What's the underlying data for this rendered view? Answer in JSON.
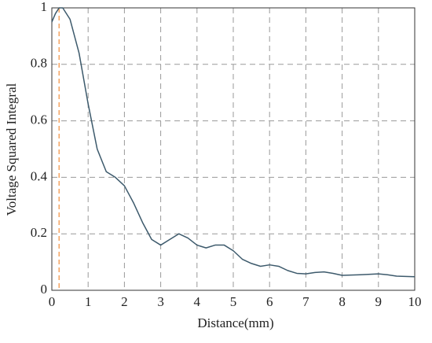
{
  "chart_data": {
    "type": "line",
    "xlabel": "Distance(mm)",
    "ylabel": "Voltage Squared Integral",
    "x": [
      0,
      0.1,
      0.2,
      0.3,
      0.5,
      0.75,
      1.0,
      1.25,
      1.5,
      1.75,
      2.0,
      2.25,
      2.5,
      2.75,
      3.0,
      3.25,
      3.5,
      3.75,
      4.0,
      4.25,
      4.5,
      4.75,
      5.0,
      5.25,
      5.5,
      5.75,
      6.0,
      6.25,
      6.5,
      6.75,
      7.0,
      7.25,
      7.5,
      7.75,
      8.0,
      8.5,
      9.0,
      9.25,
      9.5,
      10
    ],
    "series": [
      {
        "color": "#3d5a6c",
        "values": [
          0.95,
          0.98,
          1.0,
          1.0,
          0.96,
          0.84,
          0.66,
          0.5,
          0.42,
          0.4,
          0.37,
          0.31,
          0.24,
          0.18,
          0.16,
          0.18,
          0.2,
          0.185,
          0.16,
          0.15,
          0.16,
          0.16,
          0.14,
          0.11,
          0.095,
          0.085,
          0.09,
          0.085,
          0.07,
          0.06,
          0.058,
          0.063,
          0.065,
          0.06,
          0.053,
          0.055,
          0.058,
          0.055,
          0.05,
          0.048
        ]
      }
    ],
    "marker_x": 0.2,
    "marker_color": "#f4a460",
    "xlim": [
      0,
      10
    ],
    "xticks": [
      0,
      1,
      2,
      3,
      4,
      5,
      6,
      7,
      8,
      9,
      10
    ],
    "ylim": [
      0,
      1
    ],
    "yticks": [
      0,
      0.2,
      0.4,
      0.6,
      0.8,
      1
    ],
    "grid": true
  }
}
